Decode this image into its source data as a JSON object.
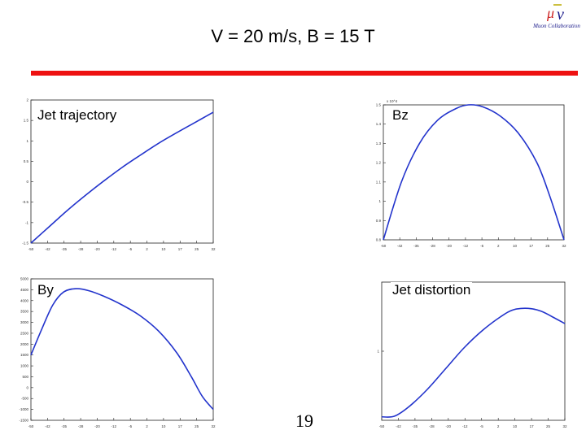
{
  "slide": {
    "title": "V = 20 m/s,  B = 15 T",
    "page_number": "19",
    "logo": {
      "name": "muon-collaboration-logo",
      "text": "Muon Collaboration"
    },
    "accent_color": "#ee1111"
  },
  "chart_data": [
    {
      "type": "line",
      "title": "Jet trajectory",
      "x_ticks": [
        "-50",
        "-42",
        "-35",
        "-28",
        "-20",
        "-12",
        "-5",
        "2",
        "10",
        "17",
        "25",
        "32"
      ],
      "y_ticks": [
        "-1.5",
        "-1",
        "-0.5",
        "0",
        "0.5",
        "1",
        "1.5",
        "2"
      ],
      "ylim": [
        -1.5,
        2
      ],
      "series": [
        {
          "color": "#2233cc",
          "points": [
            [
              0,
              -1.5
            ],
            [
              0.1,
              -1.1
            ],
            [
              0.2,
              -0.7
            ],
            [
              0.3,
              -0.33
            ],
            [
              0.4,
              0.02
            ],
            [
              0.5,
              0.35
            ],
            [
              0.6,
              0.65
            ],
            [
              0.7,
              0.94
            ],
            [
              0.8,
              1.2
            ],
            [
              0.9,
              1.45
            ],
            [
              1,
              1.7
            ]
          ]
        }
      ]
    },
    {
      "type": "line",
      "title": "Bz",
      "multiplier": "x 10^4",
      "x_ticks": [
        "-50",
        "-42",
        "-35",
        "-28",
        "-20",
        "-12",
        "-5",
        "2",
        "10",
        "17",
        "25",
        "32"
      ],
      "y_ticks": [
        "0.8",
        "0.9",
        "1",
        "1.1",
        "1.2",
        "1.3",
        "1.4",
        "1.5"
      ],
      "ylim": [
        0.8,
        1.5
      ],
      "series": [
        {
          "color": "#2233cc",
          "points": [
            [
              0,
              0.8
            ],
            [
              0.1,
              1.1
            ],
            [
              0.2,
              1.3
            ],
            [
              0.3,
              1.42
            ],
            [
              0.4,
              1.48
            ],
            [
              0.47,
              1.5
            ],
            [
              0.55,
              1.49
            ],
            [
              0.65,
              1.44
            ],
            [
              0.75,
              1.35
            ],
            [
              0.85,
              1.2
            ],
            [
              0.92,
              1.03
            ],
            [
              1,
              0.8
            ]
          ]
        }
      ]
    },
    {
      "type": "line",
      "title": "By",
      "x_ticks": [
        "-50",
        "-42",
        "-35",
        "-28",
        "-20",
        "-12",
        "-5",
        "2",
        "10",
        "17",
        "25",
        "32"
      ],
      "y_ticks": [
        "-1500",
        "-1000",
        "-500",
        "0",
        "500",
        "1000",
        "1500",
        "2000",
        "2500",
        "3000",
        "3500",
        "4000",
        "4500",
        "5000"
      ],
      "ylim": [
        -1500,
        5000
      ],
      "series": [
        {
          "color": "#2233cc",
          "points": [
            [
              0,
              1500
            ],
            [
              0.06,
              2700
            ],
            [
              0.12,
              3800
            ],
            [
              0.18,
              4400
            ],
            [
              0.25,
              4550
            ],
            [
              0.32,
              4450
            ],
            [
              0.4,
              4200
            ],
            [
              0.5,
              3800
            ],
            [
              0.6,
              3300
            ],
            [
              0.7,
              2600
            ],
            [
              0.8,
              1600
            ],
            [
              0.88,
              500
            ],
            [
              0.94,
              -400
            ],
            [
              1,
              -1000
            ]
          ]
        }
      ]
    },
    {
      "type": "line",
      "title": "Jet distortion",
      "x_ticks": [
        "-50",
        "-42",
        "-35",
        "-28",
        "-20",
        "-12",
        "-5",
        "2",
        "10",
        "17",
        "25",
        "32"
      ],
      "y_ticks": [
        "1"
      ],
      "ylim": [
        0,
        2
      ],
      "series": [
        {
          "color": "#2233cc",
          "points": [
            [
              0,
              0.05
            ],
            [
              0.07,
              0.06
            ],
            [
              0.15,
              0.2
            ],
            [
              0.25,
              0.45
            ],
            [
              0.35,
              0.75
            ],
            [
              0.45,
              1.05
            ],
            [
              0.55,
              1.3
            ],
            [
              0.65,
              1.5
            ],
            [
              0.72,
              1.6
            ],
            [
              0.8,
              1.62
            ],
            [
              0.87,
              1.58
            ],
            [
              0.93,
              1.5
            ],
            [
              1,
              1.4
            ]
          ]
        }
      ]
    }
  ]
}
